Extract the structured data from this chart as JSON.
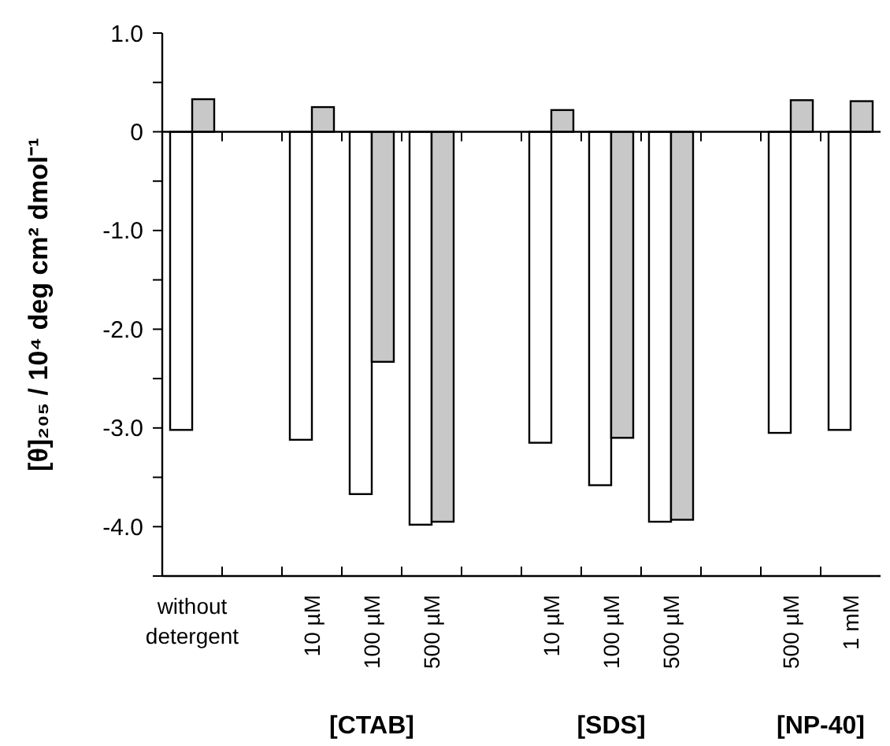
{
  "chart_data": {
    "type": "bar",
    "ylabel": "[θ]₂₀₅ / 10⁴ deg cm² dmol⁻¹",
    "categories": [
      "without detergent",
      null,
      "10 µM",
      "100 µM",
      "500 µM",
      null,
      "10 µM",
      "100 µM",
      "500 µM",
      null,
      "500 µM",
      "1 mM"
    ],
    "series": [
      {
        "color": "#ffffff",
        "values": [
          -3.02,
          null,
          -3.12,
          -3.67,
          -3.98,
          null,
          -3.15,
          -3.58,
          -3.95,
          null,
          -3.05,
          -3.02
        ]
      },
      {
        "color": "#c8c8c8",
        "values": [
          0.33,
          null,
          0.25,
          -2.33,
          -3.95,
          null,
          0.22,
          -3.1,
          -3.93,
          null,
          0.32,
          0.31
        ]
      }
    ],
    "ylim": [
      -4.5,
      1.0
    ],
    "yticks": [
      {
        "value": 1,
        "label": "1.0"
      },
      {
        "value": 0.5,
        "label": null
      },
      0,
      {
        "value": -0.5,
        "label": null
      },
      {
        "value": -1,
        "label": "-1.0"
      },
      {
        "value": -1.5,
        "label": null
      },
      {
        "value": -2,
        "label": "-2.0"
      },
      {
        "value": -2.5,
        "label": null
      },
      {
        "value": -3,
        "label": "-3.0"
      },
      {
        "value": -3.5,
        "label": null
      },
      {
        "value": -4,
        "label": "-4.0"
      },
      {
        "value": -4.5,
        "label": null
      }
    ],
    "annotations": [
      "[CTAB]",
      "[SDS]",
      "[NP-40]"
    ]
  }
}
